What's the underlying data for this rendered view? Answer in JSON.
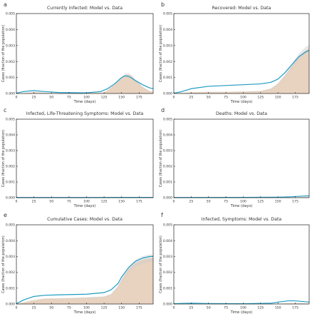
{
  "colors": {
    "model_line": "#1f9bc2",
    "data_area": "#e8d2c0",
    "band": "#cfcfcf",
    "axis": "#222222"
  },
  "chart_data": [
    {
      "panel": "a",
      "type": "area",
      "title": "Currently Infected: Model vs. Data",
      "xlabel": "Time (days)",
      "ylabel": "Cases (fraction of the population)",
      "xlim": [
        0,
        195
      ],
      "ylim": [
        0,
        0.005
      ],
      "xticks": [
        "0",
        "25",
        "50",
        "75",
        "100",
        "125",
        "150",
        "175"
      ],
      "yticks": [
        "0.000",
        "0.001",
        "0.002",
        "0.003",
        "0.004",
        "0.005"
      ],
      "series": [
        {
          "role": "data",
          "x": [
            0,
            25,
            50,
            75,
            100,
            125,
            130,
            140,
            150,
            155,
            160,
            165,
            170,
            180,
            190,
            195
          ],
          "y": [
            0,
            8e-05,
            3e-05,
            2e-05,
            2e-05,
            6e-05,
            0.0002,
            0.00055,
            0.00095,
            0.00115,
            0.00118,
            0.00105,
            0.0008,
            0.0004,
            0.00015,
            0.0001
          ]
        },
        {
          "role": "model",
          "x": [
            0,
            10,
            25,
            40,
            60,
            100,
            120,
            130,
            140,
            150,
            155,
            160,
            165,
            170,
            180,
            190,
            195
          ],
          "y": [
            2e-05,
            0.00012,
            0.00018,
            0.00012,
            6e-05,
            4e-05,
            0.00012,
            0.0003,
            0.0006,
            0.001,
            0.00111,
            0.00107,
            0.00095,
            0.0008,
            0.00055,
            0.00035,
            0.0003
          ]
        }
      ]
    },
    {
      "panel": "b",
      "type": "area",
      "title": "Recovered: Model vs. Data",
      "xlabel": "Time (days)",
      "ylabel": "Cases (fraction of the population)",
      "xlim": [
        0,
        195
      ],
      "ylim": [
        0,
        0.005
      ],
      "xticks": [
        "0",
        "25",
        "50",
        "75",
        "100",
        "125",
        "150",
        "175"
      ],
      "yticks": [
        "0.000",
        "0.001",
        "0.002",
        "0.003",
        "0.004",
        "0.005"
      ],
      "series": [
        {
          "role": "data",
          "x": [
            0,
            25,
            50,
            75,
            100,
            125,
            140,
            150,
            160,
            170,
            180,
            190,
            195
          ],
          "y": [
            0,
            8e-05,
            0.0001,
            0.0001,
            0.00012,
            0.00015,
            0.0003,
            0.0006,
            0.0011,
            0.0017,
            0.0023,
            0.0027,
            0.0028
          ]
        },
        {
          "role": "model",
          "x": [
            0,
            10,
            25,
            50,
            75,
            100,
            125,
            140,
            150,
            160,
            170,
            180,
            190,
            195
          ],
          "y": [
            2e-05,
            0.0001,
            0.0003,
            0.00045,
            0.0005,
            0.00055,
            0.0006,
            0.0007,
            0.0009,
            0.0013,
            0.0018,
            0.0023,
            0.0026,
            0.0027
          ]
        }
      ]
    },
    {
      "panel": "c",
      "type": "area",
      "title": "Infected, Life-Threatening Symptoms: Model vs. Data",
      "xlabel": "Time (days)",
      "ylabel": "Cases (fraction of the population)",
      "xlim": [
        0,
        195
      ],
      "ylim": [
        0,
        0.005
      ],
      "xticks": [
        "0",
        "25",
        "50",
        "75",
        "100",
        "125",
        "150",
        "175"
      ],
      "yticks": [
        "0.000",
        "0.001",
        "0.002",
        "0.003",
        "0.004",
        "0.005"
      ],
      "series": [
        {
          "role": "data",
          "x": [
            0,
            195
          ],
          "y": [
            0,
            0
          ]
        },
        {
          "role": "model",
          "x": [
            0,
            100,
            150,
            195
          ],
          "y": [
            1e-05,
            1e-05,
            2e-05,
            2e-05
          ]
        }
      ]
    },
    {
      "panel": "d",
      "type": "area",
      "title": "Deaths: Model vs. Data",
      "xlabel": "Time (days)",
      "ylabel": "Cases (fraction of the population)",
      "xlim": [
        0,
        195
      ],
      "ylim": [
        0,
        0.005
      ],
      "xticks": [
        "0",
        "25",
        "50",
        "75",
        "100",
        "125",
        "150",
        "175"
      ],
      "yticks": [
        "0.000",
        "0.001",
        "0.002",
        "0.003",
        "0.004",
        "0.005"
      ],
      "series": [
        {
          "role": "data",
          "x": [
            0,
            150,
            170,
            195
          ],
          "y": [
            0,
            0,
            2e-05,
            5e-05
          ]
        },
        {
          "role": "model",
          "x": [
            0,
            100,
            150,
            170,
            185,
            195
          ],
          "y": [
            1e-05,
            2e-05,
            3e-05,
            6e-05,
            0.0001,
            0.00012
          ]
        }
      ]
    },
    {
      "panel": "e",
      "type": "area",
      "title": "Cumulative Cases: Model vs. Data",
      "xlabel": "Time (days)",
      "ylabel": "Cases (fraction of the population)",
      "xlim": [
        0,
        195
      ],
      "ylim": [
        0,
        0.005
      ],
      "xticks": [
        "0",
        "25",
        "50",
        "75",
        "100",
        "125",
        "150",
        "175"
      ],
      "yticks": [
        "0.000",
        "0.001",
        "0.002",
        "0.003",
        "0.004",
        "0.005"
      ],
      "series": [
        {
          "role": "data",
          "x": [
            0,
            20,
            40,
            75,
            100,
            125,
            135,
            145,
            150,
            160,
            170,
            180,
            190,
            195
          ],
          "y": [
            0,
            0.0002,
            0.00033,
            0.00036,
            0.0004,
            0.00045,
            0.0006,
            0.0011,
            0.0015,
            0.0022,
            0.0026,
            0.0028,
            0.0029,
            0.0029
          ]
        },
        {
          "role": "model",
          "x": [
            0,
            10,
            25,
            40,
            60,
            100,
            125,
            135,
            145,
            150,
            160,
            170,
            180,
            190,
            195
          ],
          "y": [
            2e-05,
            0.00025,
            0.00048,
            0.00055,
            0.00058,
            0.00062,
            0.00072,
            0.0009,
            0.0013,
            0.0017,
            0.0023,
            0.0027,
            0.0029,
            0.003,
            0.003
          ]
        }
      ]
    },
    {
      "panel": "f",
      "type": "area",
      "title": "Infected, Symptoms: Model vs. Data",
      "xlabel": "Time (days)",
      "ylabel": "Cases (fraction of the population)",
      "xlim": [
        0,
        195
      ],
      "ylim": [
        0,
        0.005
      ],
      "xticks": [
        "0",
        "25",
        "50",
        "75",
        "100",
        "125",
        "150",
        "175"
      ],
      "yticks": [
        "0.000",
        "0.001",
        "0.002",
        "0.003",
        "0.004",
        "0.005"
      ],
      "series": [
        {
          "role": "data",
          "x": [
            0,
            140,
            160,
            175,
            195
          ],
          "y": [
            0,
            0,
            4e-05,
            6e-05,
            3e-05
          ]
        },
        {
          "role": "model",
          "x": [
            0,
            25,
            50,
            100,
            140,
            155,
            165,
            175,
            185,
            195
          ],
          "y": [
            2e-05,
            5e-05,
            3e-05,
            2e-05,
            5e-05,
            0.00015,
            0.0002,
            0.0002,
            0.00016,
            0.00012
          ]
        }
      ]
    }
  ]
}
